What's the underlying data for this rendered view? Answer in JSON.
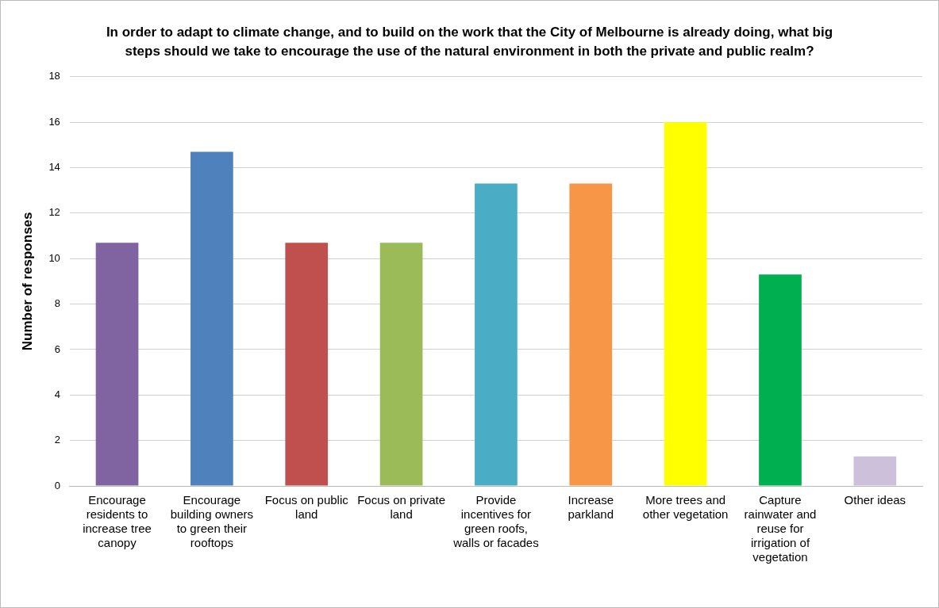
{
  "chart_data": {
    "type": "bar",
    "title": "In order to adapt to climate change, and to build on the work that the City of Melbourne is already doing, what big steps should we take to encourage the use of the natural environment in both the private and public realm?",
    "ylabel": "Number of responses",
    "categories": [
      "Encourage residents to increase tree canopy",
      "Encourage building owners to green their rooftops",
      "Focus on public land",
      "Focus on private land",
      "Provide incentives for green roofs, walls or facades",
      "Increase parkland",
      "More trees and other vegetation",
      "Capture rainwater and reuse for irrigation of vegetation",
      "Other ideas"
    ],
    "values": [
      10.7,
      14.7,
      10.7,
      10.7,
      13.3,
      13.3,
      16,
      9.3,
      1.3
    ],
    "colors": [
      "#8064a2",
      "#4f81bd",
      "#c0504d",
      "#9bbb59",
      "#4bacc6",
      "#f79646",
      "#ffff00",
      "#00b050",
      "#ccc0da"
    ],
    "ylim": [
      0,
      18
    ],
    "yticks": [
      0,
      2,
      4,
      6,
      8,
      10,
      12,
      14,
      16,
      18
    ],
    "grid": "y",
    "legend": false
  }
}
